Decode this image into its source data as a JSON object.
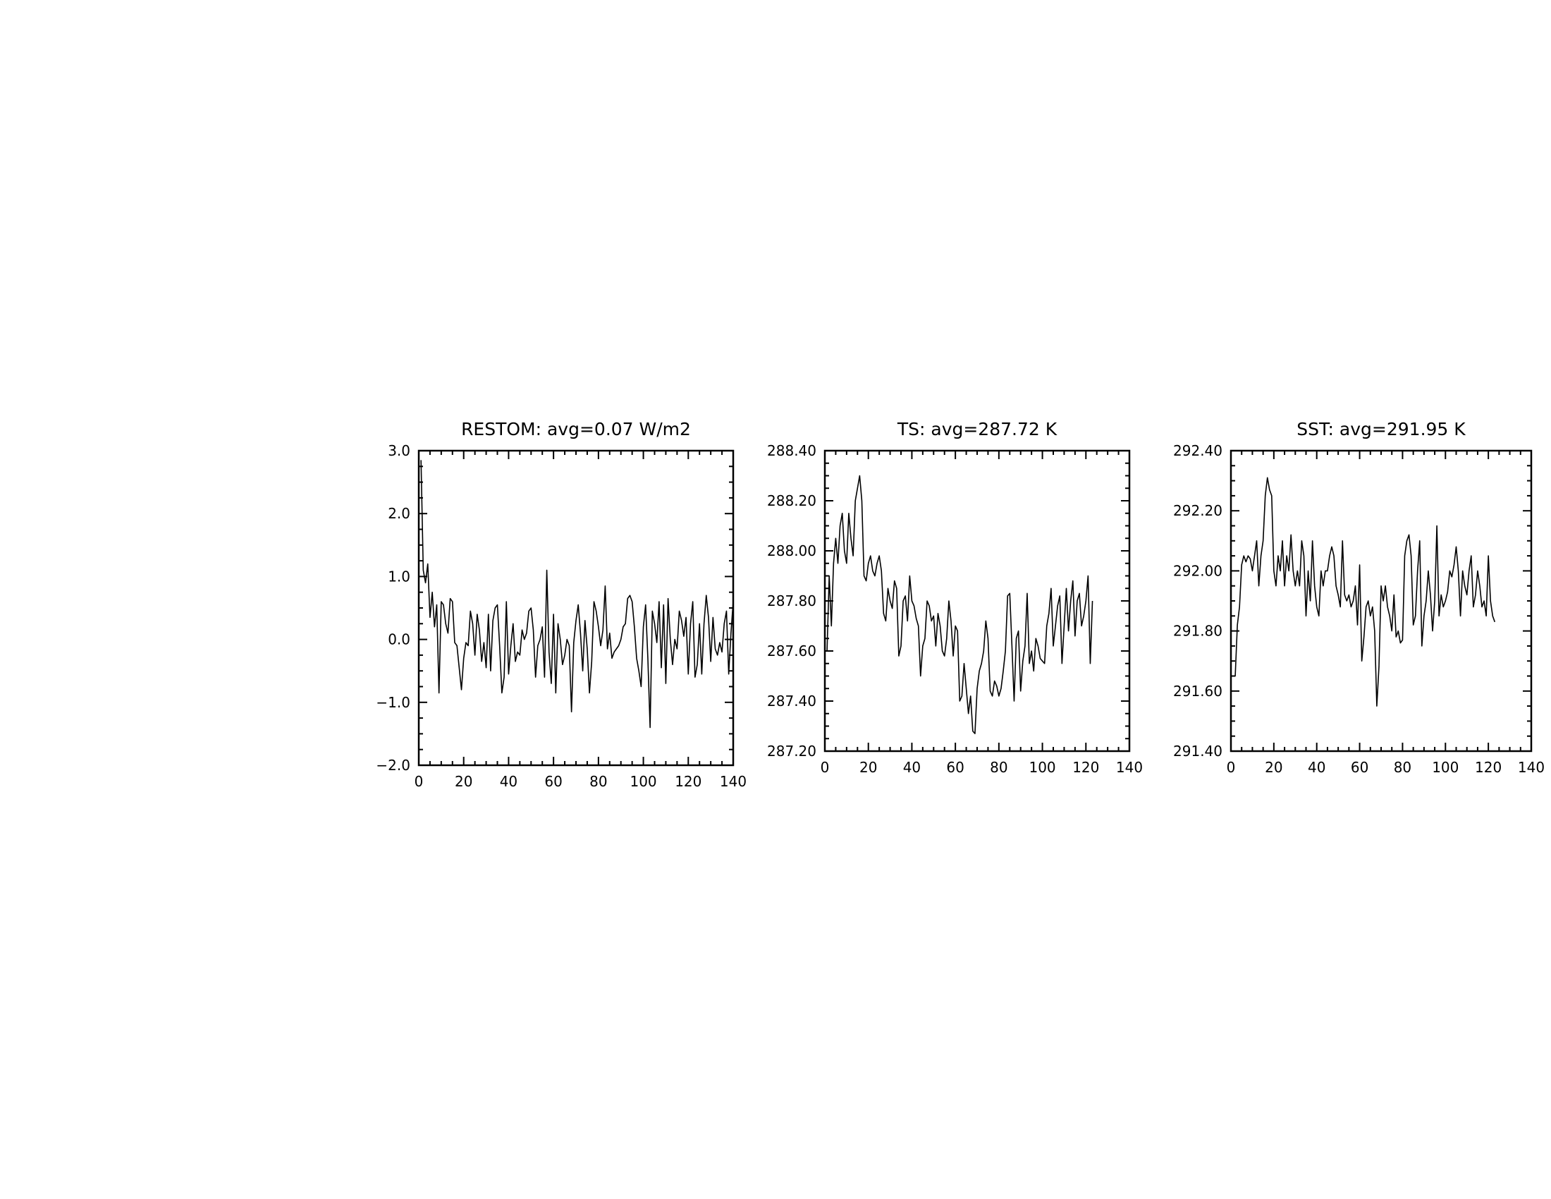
{
  "chart_data": [
    {
      "type": "line",
      "title": "RESTOM: avg=0.07 W/m2",
      "xlabel": "",
      "ylabel": "",
      "xlim": [
        0,
        140
      ],
      "ylim": [
        -2.0,
        3.0
      ],
      "x_ticks": [
        0,
        20,
        40,
        60,
        80,
        100,
        120,
        140
      ],
      "x_tick_labels": [
        "0",
        "20",
        "40",
        "60",
        "80",
        "100",
        "120",
        "140"
      ],
      "y_ticks": [
        -2.0,
        -1.0,
        0.0,
        1.0,
        2.0,
        3.0
      ],
      "y_tick_labels": [
        "−2.0",
        "−1.0",
        "0.0",
        "1.0",
        "2.0",
        "3.0"
      ],
      "grid": false,
      "x_start": 1,
      "series": [
        {
          "values": [
            2.85,
            1.1,
            0.9,
            1.2,
            0.35,
            0.75,
            0.2,
            0.55,
            -0.85,
            0.6,
            0.55,
            0.25,
            0.1,
            0.65,
            0.6,
            -0.05,
            -0.1,
            -0.45,
            -0.8,
            -0.3,
            -0.05,
            -0.1,
            0.45,
            0.25,
            -0.25,
            0.4,
            0.15,
            -0.35,
            -0.05,
            -0.45,
            0.4,
            -0.5,
            0.3,
            0.5,
            0.55,
            -0.1,
            -0.85,
            -0.6,
            0.6,
            -0.55,
            -0.1,
            0.25,
            -0.35,
            -0.2,
            -0.25,
            0.15,
            0.0,
            0.1,
            0.45,
            0.5,
            0.15,
            -0.6,
            -0.1,
            0.0,
            0.2,
            -0.6,
            1.1,
            -0.2,
            -0.7,
            0.4,
            -0.85,
            0.25,
            0.0,
            -0.4,
            -0.25,
            0.0,
            -0.1,
            -1.15,
            -0.05,
            0.3,
            0.55,
            0.1,
            -0.5,
            0.3,
            -0.15,
            -0.85,
            -0.35,
            0.6,
            0.45,
            0.2,
            -0.1,
            0.15,
            0.85,
            -0.15,
            0.1,
            -0.3,
            -0.2,
            -0.15,
            -0.1,
            0.0,
            0.2,
            0.25,
            0.65,
            0.7,
            0.6,
            0.2,
            -0.3,
            -0.5,
            -0.75,
            0.2,
            0.55,
            -0.3,
            -1.4,
            0.45,
            0.25,
            -0.05,
            0.6,
            -0.45,
            0.55,
            -0.7,
            0.65,
            0.0,
            -0.4,
            0.0,
            -0.15,
            0.45,
            0.3,
            0.05,
            0.35,
            -0.55,
            0.25,
            0.6,
            -0.6,
            -0.4,
            0.25,
            -0.55,
            0.25,
            0.7,
            0.35,
            -0.35,
            0.35,
            -0.15,
            -0.25,
            -0.05,
            -0.2,
            0.25,
            0.45,
            -0.55,
            0.1,
            0.6
          ]
        }
      ]
    },
    {
      "type": "line",
      "title": "TS: avg=287.72 K",
      "xlabel": "",
      "ylabel": "",
      "xlim": [
        0,
        140
      ],
      "ylim": [
        287.2,
        288.4
      ],
      "x_ticks": [
        0,
        20,
        40,
        60,
        80,
        100,
        120,
        140
      ],
      "x_tick_labels": [
        "0",
        "20",
        "40",
        "60",
        "80",
        "100",
        "120",
        "140"
      ],
      "y_ticks": [
        287.2,
        287.4,
        287.6,
        287.8,
        288.0,
        288.2,
        288.4
      ],
      "y_tick_labels": [
        "287.20",
        "287.40",
        "287.60",
        "287.80",
        "288.00",
        "288.20",
        "288.40"
      ],
      "grid": false,
      "x_start": 1,
      "series": [
        {
          "values": [
            287.6,
            287.9,
            287.7,
            287.95,
            288.05,
            287.95,
            288.1,
            288.15,
            288.0,
            287.95,
            288.15,
            288.05,
            287.98,
            288.2,
            288.25,
            288.3,
            288.2,
            287.9,
            287.88,
            287.95,
            287.98,
            287.92,
            287.9,
            287.95,
            287.98,
            287.92,
            287.75,
            287.72,
            287.85,
            287.8,
            287.77,
            287.88,
            287.85,
            287.58,
            287.62,
            287.8,
            287.82,
            287.72,
            287.9,
            287.8,
            287.78,
            287.73,
            287.7,
            287.5,
            287.62,
            287.65,
            287.8,
            287.78,
            287.72,
            287.74,
            287.62,
            287.75,
            287.7,
            287.6,
            287.58,
            287.65,
            287.8,
            287.72,
            287.58,
            287.7,
            287.68,
            287.4,
            287.42,
            287.55,
            287.45,
            287.35,
            287.42,
            287.28,
            287.27,
            287.45,
            287.52,
            287.55,
            287.6,
            287.72,
            287.65,
            287.44,
            287.42,
            287.48,
            287.46,
            287.42,
            287.45,
            287.52,
            287.6,
            287.82,
            287.83,
            287.62,
            287.4,
            287.65,
            287.68,
            287.44,
            287.56,
            287.62,
            287.83,
            287.55,
            287.6,
            287.52,
            287.65,
            287.62,
            287.57,
            287.56,
            287.55,
            287.7,
            287.75,
            287.85,
            287.62,
            287.7,
            287.78,
            287.82,
            287.55,
            287.7,
            287.85,
            287.68,
            287.8,
            287.88,
            287.66,
            287.8,
            287.83,
            287.7,
            287.74,
            287.8,
            287.9,
            287.55,
            287.8
          ]
        }
      ]
    },
    {
      "type": "line",
      "title": "SST: avg=291.95 K",
      "xlabel": "",
      "ylabel": "",
      "xlim": [
        0,
        140
      ],
      "ylim": [
        291.4,
        292.4
      ],
      "x_ticks": [
        0,
        20,
        40,
        60,
        80,
        100,
        120,
        140
      ],
      "x_tick_labels": [
        "0",
        "20",
        "40",
        "60",
        "80",
        "100",
        "120",
        "140"
      ],
      "y_ticks": [
        291.4,
        291.6,
        291.8,
        292.0,
        292.2,
        292.4
      ],
      "y_tick_labels": [
        "291.40",
        "291.60",
        "291.80",
        "292.00",
        "292.20",
        "292.40"
      ],
      "grid": false,
      "x_start": 1,
      "series": [
        {
          "values": [
            291.65,
            291.65,
            291.82,
            291.88,
            292.02,
            292.05,
            292.03,
            292.05,
            292.04,
            292.0,
            292.05,
            292.1,
            291.95,
            292.05,
            292.1,
            292.25,
            292.31,
            292.27,
            292.25,
            292.0,
            291.95,
            292.05,
            292.0,
            292.1,
            291.95,
            292.05,
            292.0,
            292.12,
            292.0,
            291.95,
            292.0,
            291.95,
            292.1,
            292.05,
            291.85,
            292.0,
            291.9,
            292.1,
            291.95,
            291.88,
            291.85,
            292.0,
            291.95,
            292.0,
            292.0,
            292.05,
            292.08,
            292.05,
            291.95,
            291.92,
            291.88,
            292.1,
            291.92,
            291.9,
            291.92,
            291.88,
            291.9,
            291.95,
            291.82,
            292.02,
            291.7,
            291.78,
            291.88,
            291.9,
            291.85,
            291.88,
            291.8,
            291.55,
            291.68,
            291.95,
            291.9,
            291.95,
            291.88,
            291.85,
            291.8,
            291.92,
            291.78,
            291.8,
            291.76,
            291.77,
            292.05,
            292.1,
            292.12,
            292.05,
            291.82,
            291.85,
            292.0,
            292.1,
            291.75,
            291.85,
            291.9,
            292.0,
            291.92,
            291.8,
            291.9,
            292.15,
            291.85,
            291.92,
            291.88,
            291.9,
            291.93,
            292.0,
            291.98,
            292.02,
            292.08,
            292.0,
            291.85,
            292.0,
            291.95,
            291.92,
            292.0,
            292.05,
            291.88,
            291.92,
            292.0,
            291.95,
            291.88,
            291.9,
            291.85,
            292.05,
            291.9,
            291.85,
            291.83
          ]
        }
      ]
    }
  ]
}
